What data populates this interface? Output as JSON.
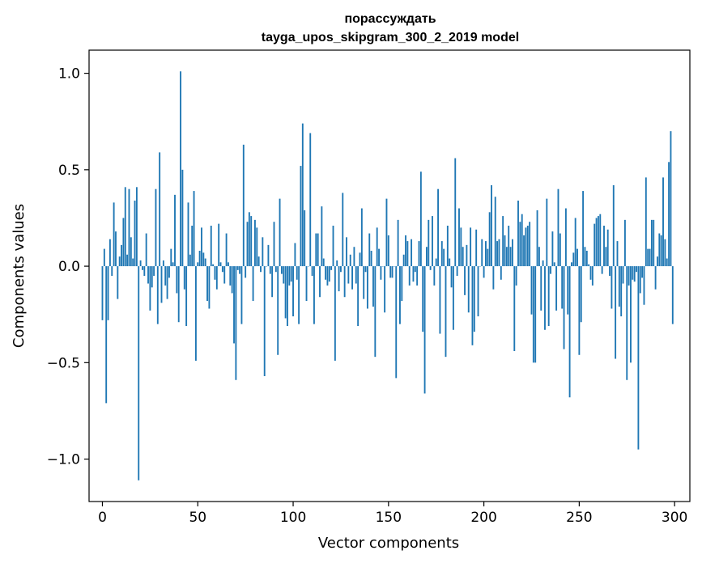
{
  "chart_data": {
    "type": "bar",
    "title": "порассуждать",
    "subtitle": "tayga_upos_skipgram_300_2_2019 model",
    "xlabel": "Vector components",
    "ylabel": "Components values",
    "xlim": [
      -7,
      308
    ],
    "ylim": [
      -1.22,
      1.12
    ],
    "xticks": [
      0,
      50,
      100,
      150,
      200,
      250,
      300
    ],
    "yticks": [
      -1.0,
      -0.5,
      0.0,
      0.5,
      1.0
    ],
    "xtick_labels": [
      "0",
      "50",
      "100",
      "150",
      "200",
      "250",
      "300"
    ],
    "ytick_labels": [
      "−1.0",
      "−0.5",
      "0.0",
      "0.5",
      "1.0"
    ],
    "grid": false,
    "bar_color": "#1f77b4",
    "x": [
      0,
      1,
      2,
      3,
      4,
      5,
      6,
      7,
      8,
      9,
      10,
      11,
      12,
      13,
      14,
      15,
      16,
      17,
      18,
      19,
      20,
      21,
      22,
      23,
      24,
      25,
      26,
      27,
      28,
      29,
      30,
      31,
      32,
      33,
      34,
      35,
      36,
      37,
      38,
      39,
      40,
      41,
      42,
      43,
      44,
      45,
      46,
      47,
      48,
      49,
      50,
      51,
      52,
      53,
      54,
      55,
      56,
      57,
      58,
      59,
      60,
      61,
      62,
      63,
      64,
      65,
      66,
      67,
      68,
      69,
      70,
      71,
      72,
      73,
      74,
      75,
      76,
      77,
      78,
      79,
      80,
      81,
      82,
      83,
      84,
      85,
      86,
      87,
      88,
      89,
      90,
      91,
      92,
      93,
      94,
      95,
      96,
      97,
      98,
      99,
      100,
      101,
      102,
      103,
      104,
      105,
      106,
      107,
      108,
      109,
      110,
      111,
      112,
      113,
      114,
      115,
      116,
      117,
      118,
      119,
      120,
      121,
      122,
      123,
      124,
      125,
      126,
      127,
      128,
      129,
      130,
      131,
      132,
      133,
      134,
      135,
      136,
      137,
      138,
      139,
      140,
      141,
      142,
      143,
      144,
      145,
      146,
      147,
      148,
      149,
      150,
      151,
      152,
      153,
      154,
      155,
      156,
      157,
      158,
      159,
      160,
      161,
      162,
      163,
      164,
      165,
      166,
      167,
      168,
      169,
      170,
      171,
      172,
      173,
      174,
      175,
      176,
      177,
      178,
      179,
      180,
      181,
      182,
      183,
      184,
      185,
      186,
      187,
      188,
      189,
      190,
      191,
      192,
      193,
      194,
      195,
      196,
      197,
      198,
      199,
      200,
      201,
      202,
      203,
      204,
      205,
      206,
      207,
      208,
      209,
      210,
      211,
      212,
      213,
      214,
      215,
      216,
      217,
      218,
      219,
      220,
      221,
      222,
      223,
      224,
      225,
      226,
      227,
      228,
      229,
      230,
      231,
      232,
      233,
      234,
      235,
      236,
      237,
      238,
      239,
      240,
      241,
      242,
      243,
      244,
      245,
      246,
      247,
      248,
      249,
      250,
      251,
      252,
      253,
      254,
      255,
      256,
      257,
      258,
      259,
      260,
      261,
      262,
      263,
      264,
      265,
      266,
      267,
      268,
      269,
      270,
      271,
      272,
      273,
      274,
      275,
      276,
      277,
      278,
      279,
      280,
      281,
      282,
      283,
      284,
      285,
      286,
      287,
      288,
      289,
      290,
      291,
      292,
      293,
      294,
      295,
      296,
      297,
      298,
      299
    ],
    "values": [
      -0.28,
      0.09,
      -0.71,
      -0.28,
      0.14,
      -0.05,
      0.33,
      0.18,
      -0.17,
      0.05,
      0.11,
      0.25,
      0.41,
      0.06,
      0.4,
      0.15,
      0.04,
      0.34,
      0.41,
      -1.11,
      0.03,
      -0.02,
      -0.05,
      0.17,
      -0.09,
      -0.23,
      -0.11,
      -0.05,
      0.4,
      -0.3,
      0.59,
      -0.19,
      0.03,
      -0.1,
      -0.17,
      -0.06,
      0.09,
      0.02,
      0.37,
      -0.14,
      -0.29,
      1.01,
      0.5,
      -0.12,
      -0.31,
      0.33,
      0.06,
      0.21,
      0.39,
      -0.49,
      0.02,
      0.08,
      0.2,
      0.07,
      0.04,
      -0.18,
      -0.22,
      0.21,
      0.01,
      -0.07,
      -0.12,
      0.22,
      0.02,
      -0.03,
      -0.09,
      0.17,
      0.02,
      -0.1,
      -0.14,
      -0.4,
      -0.59,
      -0.02,
      -0.04,
      -0.3,
      0.63,
      -0.06,
      0.23,
      0.28,
      0.26,
      -0.18,
      0.24,
      0.2,
      0.05,
      -0.03,
      0.15,
      -0.57,
      0.0,
      0.11,
      -0.04,
      -0.16,
      0.23,
      -0.03,
      -0.46,
      0.35,
      -0.04,
      -0.09,
      -0.27,
      -0.31,
      -0.1,
      -0.08,
      -0.26,
      0.12,
      -0.07,
      -0.3,
      0.52,
      0.74,
      0.29,
      -0.18,
      0.0,
      0.69,
      -0.05,
      -0.3,
      0.17,
      0.17,
      -0.16,
      0.31,
      0.04,
      -0.07,
      -0.1,
      -0.08,
      -0.02,
      0.21,
      -0.49,
      0.03,
      -0.13,
      -0.03,
      0.38,
      -0.16,
      0.15,
      -0.09,
      0.06,
      -0.12,
      0.1,
      -0.09,
      -0.31,
      0.07,
      0.3,
      -0.17,
      -0.03,
      -0.22,
      0.17,
      0.08,
      -0.21,
      -0.47,
      0.2,
      0.09,
      -0.07,
      0.0,
      -0.24,
      0.35,
      0.16,
      -0.06,
      -0.06,
      0.0,
      -0.58,
      0.24,
      -0.3,
      -0.18,
      0.06,
      0.16,
      0.13,
      -0.1,
      0.14,
      -0.08,
      -0.03,
      -0.1,
      0.13,
      0.49,
      -0.34,
      -0.66,
      0.1,
      0.24,
      -0.02,
      0.26,
      -0.1,
      0.04,
      0.4,
      -0.35,
      0.13,
      0.09,
      -0.47,
      0.21,
      0.04,
      -0.11,
      -0.33,
      0.56,
      -0.05,
      0.3,
      0.2,
      0.1,
      -0.15,
      0.11,
      -0.24,
      0.2,
      -0.41,
      -0.34,
      0.19,
      -0.26,
      0.0,
      0.14,
      -0.06,
      0.13,
      0.09,
      0.28,
      0.42,
      -0.12,
      0.36,
      0.13,
      0.14,
      -0.07,
      0.26,
      0.16,
      0.1,
      0.21,
      0.1,
      0.14,
      -0.44,
      -0.1,
      0.34,
      0.23,
      0.27,
      0.16,
      0.2,
      0.21,
      0.23,
      -0.25,
      -0.5,
      -0.5,
      0.29,
      0.1,
      -0.23,
      0.03,
      -0.33,
      0.35,
      -0.31,
      -0.04,
      0.18,
      0.02,
      -0.23,
      0.4,
      0.17,
      -0.22,
      -0.43,
      0.3,
      -0.25,
      -0.68,
      0.02,
      0.07,
      0.25,
      0.09,
      -0.46,
      -0.29,
      0.39,
      0.1,
      0.08,
      0.01,
      -0.07,
      -0.1,
      0.22,
      0.25,
      0.26,
      0.27,
      -0.04,
      0.21,
      0.1,
      0.19,
      -0.05,
      -0.22,
      0.42,
      -0.48,
      0.13,
      -0.21,
      -0.26,
      -0.09,
      0.24,
      -0.59,
      -0.1,
      -0.5,
      -0.07,
      -0.08,
      -0.03,
      -0.95,
      -0.14,
      -0.06,
      -0.2,
      0.46,
      0.09,
      0.09,
      0.24,
      0.24,
      -0.12,
      0.05,
      0.17,
      0.16,
      0.46,
      0.14,
      0.04,
      0.54,
      0.7,
      -0.3
    ]
  }
}
